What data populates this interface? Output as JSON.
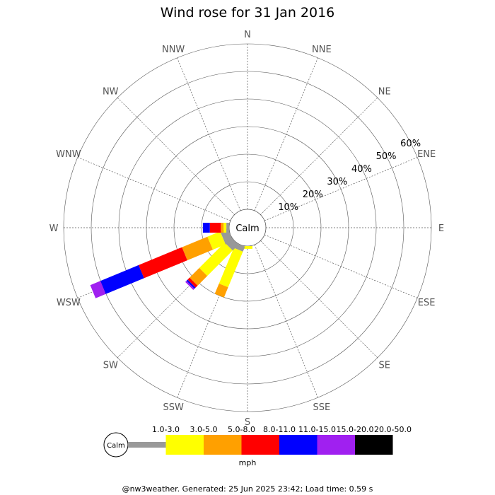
{
  "chart_data": {
    "type": "windrose",
    "title": "Wind rose for 31 Jan 2016",
    "calm_label": "Calm",
    "directions": [
      "N",
      "NNE",
      "NE",
      "ENE",
      "E",
      "ESE",
      "SE",
      "SSE",
      "S",
      "SSW",
      "SW",
      "WSW",
      "W",
      "WNW",
      "NW",
      "NNW"
    ],
    "ring_labels": [
      "10%",
      "20%",
      "30%",
      "40%",
      "50%",
      "60%"
    ],
    "ring_values": [
      10,
      20,
      30,
      40,
      50,
      60
    ],
    "speed_unit": "mph",
    "bins": [
      {
        "label": "1.0-3.0",
        "color": "#999999"
      },
      {
        "label": "3.0-5.0",
        "color": "#ffff00"
      },
      {
        "label": "5.0-8.0",
        "color": "#ffa000"
      },
      {
        "label": "8.0-11.0",
        "color": "#ff0000"
      },
      {
        "label": "11.0-15.0",
        "color": "#0000ff"
      },
      {
        "label": "15.0-20.0",
        "color": "#a020f0"
      },
      {
        "label": "20.0-50.0",
        "color": "#000000"
      }
    ],
    "series": [
      {
        "direction": "S",
        "values": [
          0,
          1,
          0,
          0,
          0,
          0,
          0
        ]
      },
      {
        "direction": "SSW",
        "values": [
          2,
          14,
          4,
          0,
          0,
          0,
          0
        ]
      },
      {
        "direction": "SW",
        "values": [
          3,
          13,
          5,
          1,
          0.6,
          0.6,
          0
        ]
      },
      {
        "direction": "WSW",
        "values": [
          3,
          5,
          10,
          17,
          15,
          4,
          0
        ]
      },
      {
        "direction": "W",
        "values": [
          1,
          1,
          1,
          4,
          2.5,
          0,
          0
        ]
      }
    ]
  },
  "footer": "@nw3weather. Generated: 25 Jun 2025 23:42; Load time: 0.59 s"
}
